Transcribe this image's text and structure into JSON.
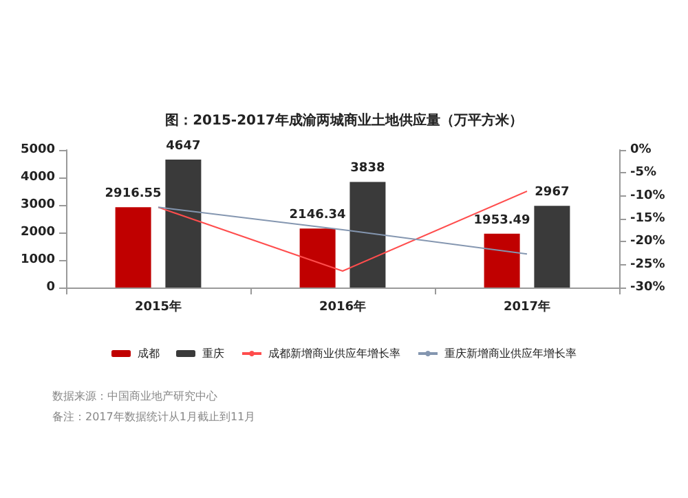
{
  "chart_data": {
    "type": "bar",
    "title": "图：2015-2017年成渝两城商业土地供应量（万平方米）",
    "categories": [
      "2015年",
      "2016年",
      "2017年"
    ],
    "series": [
      {
        "name": "成都",
        "color": "#c00000",
        "values": [
          2916.55,
          2146.34,
          1953.49
        ],
        "value_labels": [
          "2916.55",
          "2146.34",
          "1953.49"
        ]
      },
      {
        "name": "重庆",
        "color": "#3a3a3a",
        "values": [
          4647,
          3838,
          2967
        ],
        "value_labels": [
          "4647",
          "3838",
          "2967"
        ]
      },
      {
        "name": "成都新增商业供应年增长率",
        "type": "line",
        "axis": "y2",
        "color": "#ff4d4d",
        "values": [
          -12.5,
          -26.4,
          -9.0
        ]
      },
      {
        "name": "重庆新增商业供应年增长率",
        "type": "line",
        "axis": "y2",
        "color": "#8496b0",
        "values": [
          -12.5,
          -17.4,
          -22.7
        ]
      }
    ],
    "ylim": [
      0,
      5000
    ],
    "yticks": [
      0,
      1000,
      2000,
      3000,
      4000,
      5000
    ],
    "y2lim": [
      -30,
      0
    ],
    "y2ticks": [
      {
        "value": -30,
        "label": "-30%"
      },
      {
        "value": -25,
        "label": "-25%"
      },
      {
        "value": -20,
        "label": "-20%"
      },
      {
        "value": -15,
        "label": "-15%"
      },
      {
        "value": -10,
        "label": "-10%"
      },
      {
        "value": -5,
        "label": "-5%"
      },
      {
        "value": 0,
        "label": "0%"
      }
    ],
    "grid": false,
    "legend": "bottom",
    "marker": "none",
    "line_style": "solid",
    "annotations": [
      "数据来源：中国商业地产研究中心",
      "备注：2017年数据统计从1月截止到11月"
    ]
  }
}
